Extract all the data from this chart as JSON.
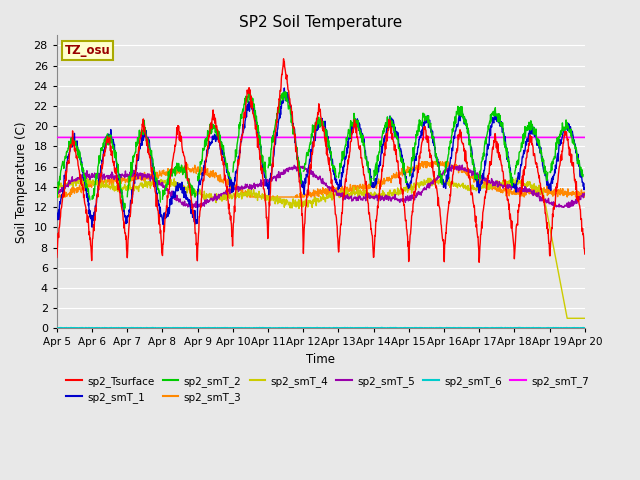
{
  "title": "SP2 Soil Temperature",
  "xlabel": "Time",
  "ylabel": "Soil Temperature (C)",
  "ylim": [
    0,
    29
  ],
  "yticks": [
    0,
    2,
    4,
    6,
    8,
    10,
    12,
    14,
    16,
    18,
    20,
    22,
    24,
    26,
    28
  ],
  "xticklabels": [
    "Apr 5",
    "Apr 6",
    "Apr 7",
    "Apr 8",
    "Apr 9",
    "Apr 10",
    "Apr 11",
    "Apr 12",
    "Apr 13",
    "Apr 14",
    "Apr 15",
    "Apr 16",
    "Apr 17",
    "Apr 18",
    "Apr 19",
    "Apr 20"
  ],
  "tz_label": "TZ_osu",
  "horizontal_line_y": 18.9,
  "background_color": "#e8e8e8",
  "grid_color": "#ffffff",
  "series_colors": {
    "sp2_Tsurface": "#ff0000",
    "sp2_smT_1": "#0000cc",
    "sp2_smT_2": "#00cc00",
    "sp2_smT_3": "#ff8800",
    "sp2_smT_4": "#cccc00",
    "sp2_smT_5": "#9900aa",
    "sp2_smT_6": "#00cccc",
    "sp2_smT_7": "#ff00ff"
  }
}
